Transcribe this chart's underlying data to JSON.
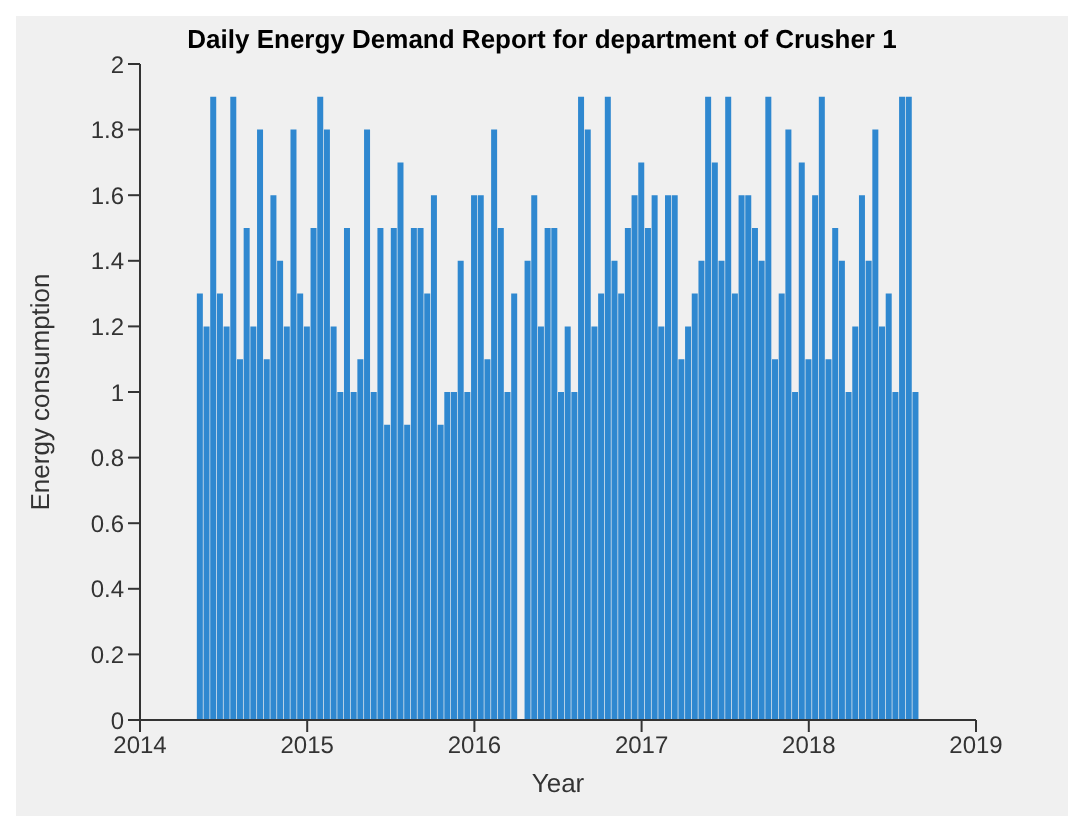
{
  "chart_data": {
    "type": "bar",
    "title": "Daily Energy Demand Report for department of Crusher 1",
    "xlabel": "Year",
    "ylabel": "Energy consumption",
    "x": [
      2014.36,
      2014.4,
      2014.44,
      2014.48,
      2014.52,
      2014.56,
      2014.6,
      2014.64,
      2014.68,
      2014.72,
      2014.76,
      2014.8,
      2014.84,
      2014.88,
      2014.92,
      2014.96,
      2015.0,
      2015.04,
      2015.08,
      2015.12,
      2015.16,
      2015.2,
      2015.24,
      2015.28,
      2015.32,
      2015.36,
      2015.4,
      2015.44,
      2015.48,
      2015.52,
      2015.56,
      2015.6,
      2015.64,
      2015.68,
      2015.72,
      2015.76,
      2015.8,
      2015.84,
      2015.88,
      2015.92,
      2015.96,
      2016.0,
      2016.04,
      2016.08,
      2016.12,
      2016.16,
      2016.2,
      2016.24,
      2016.32,
      2016.36,
      2016.4,
      2016.44,
      2016.48,
      2016.52,
      2016.56,
      2016.6,
      2016.64,
      2016.68,
      2016.72,
      2016.76,
      2016.8,
      2016.84,
      2016.88,
      2016.92,
      2016.96,
      2017.0,
      2017.04,
      2017.08,
      2017.12,
      2017.16,
      2017.2,
      2017.24,
      2017.28,
      2017.32,
      2017.36,
      2017.4,
      2017.44,
      2017.48,
      2017.52,
      2017.56,
      2017.6,
      2017.64,
      2017.68,
      2017.72,
      2017.76,
      2017.8,
      2017.84,
      2017.88,
      2017.92,
      2017.96,
      2018.0,
      2018.04,
      2018.08,
      2018.12,
      2018.16,
      2018.2,
      2018.24,
      2018.28,
      2018.32,
      2018.36,
      2018.4,
      2018.44,
      2018.48,
      2018.52,
      2018.56,
      2018.6,
      2018.64
    ],
    "values": [
      1.3,
      1.2,
      1.9,
      1.3,
      1.2,
      1.9,
      1.1,
      1.5,
      1.2,
      1.8,
      1.1,
      1.6,
      1.4,
      1.2,
      1.8,
      1.3,
      1.2,
      1.5,
      1.9,
      1.8,
      1.2,
      1.0,
      1.5,
      1.0,
      1.1,
      1.8,
      1.0,
      1.5,
      0.9,
      1.5,
      1.7,
      0.9,
      1.5,
      1.5,
      1.3,
      1.6,
      0.9,
      1.0,
      1.0,
      1.4,
      1.0,
      1.6,
      1.6,
      1.1,
      1.8,
      1.5,
      1.0,
      1.3,
      1.4,
      1.6,
      1.2,
      1.5,
      1.5,
      1.0,
      1.2,
      1.0,
      1.9,
      1.8,
      1.2,
      1.3,
      1.9,
      1.4,
      1.3,
      1.5,
      1.6,
      1.7,
      1.5,
      1.6,
      1.2,
      1.6,
      1.6,
      1.1,
      1.2,
      1.3,
      1.4,
      1.9,
      1.7,
      1.4,
      1.9,
      1.3,
      1.6,
      1.6,
      1.5,
      1.4,
      1.9,
      1.1,
      1.3,
      1.8,
      1.0,
      1.7,
      1.1,
      1.6,
      1.9,
      1.1,
      1.5,
      1.4,
      1.0,
      1.2,
      1.6,
      1.4,
      1.8,
      1.2,
      1.3,
      1.0,
      1.9,
      1.9,
      1.0
    ],
    "color": "#2f88d0",
    "xlim": [
      2014,
      2019
    ],
    "xticks": [
      2014,
      2015,
      2016,
      2017,
      2018,
      2019
    ],
    "ylim": [
      0,
      2
    ],
    "yticks": [
      0,
      0.2,
      0.4,
      0.6,
      0.8,
      1,
      1.2,
      1.4,
      1.6,
      1.8,
      2
    ]
  }
}
